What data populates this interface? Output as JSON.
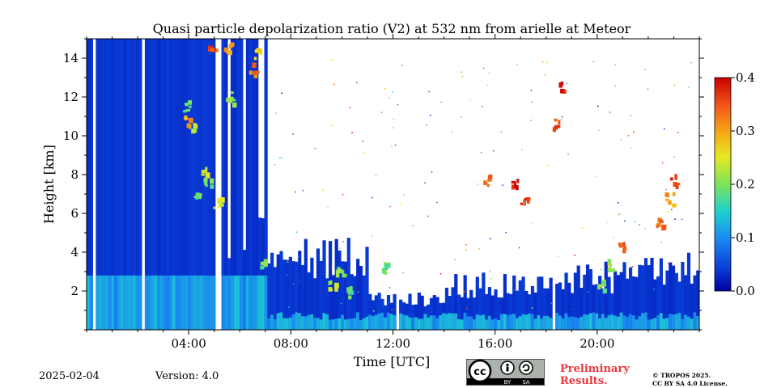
{
  "chart_data": {
    "type": "heatmap",
    "title": "Quasi particle depolarization ratio (V2) at 532 nm from arielle at Meteor",
    "xlabel": "Time [UTC]",
    "ylabel": "Height [km]",
    "x_ticks": [
      "04:00",
      "08:00",
      "12:00",
      "16:00",
      "20:00"
    ],
    "x_tick_hours": [
      4,
      8,
      12,
      16,
      20
    ],
    "xlim_hours": [
      0,
      24
    ],
    "y_ticks": [
      2,
      4,
      6,
      8,
      10,
      12,
      14
    ],
    "ylim": [
      0,
      15
    ],
    "colorbar": {
      "ticks": [
        "0.0",
        "0.1",
        "0.2",
        "0.3",
        "0.4"
      ],
      "values": [
        0.0,
        0.1,
        0.2,
        0.3,
        0.4
      ],
      "range": [
        0,
        0.4
      ],
      "colormap": "jet"
    },
    "background_value": 0.03
  },
  "footer": {
    "date": "2025-02-04",
    "version": "Version: 4.0",
    "preliminary_line1": "Preliminary",
    "preliminary_line2": "Results.",
    "copyright_line1": "© TROPOS 2025.",
    "copyright_line2": "CC BY SA 4.0 License.",
    "badge_cc": "cc",
    "badge_by": "BY",
    "badge_sa": "SA"
  }
}
